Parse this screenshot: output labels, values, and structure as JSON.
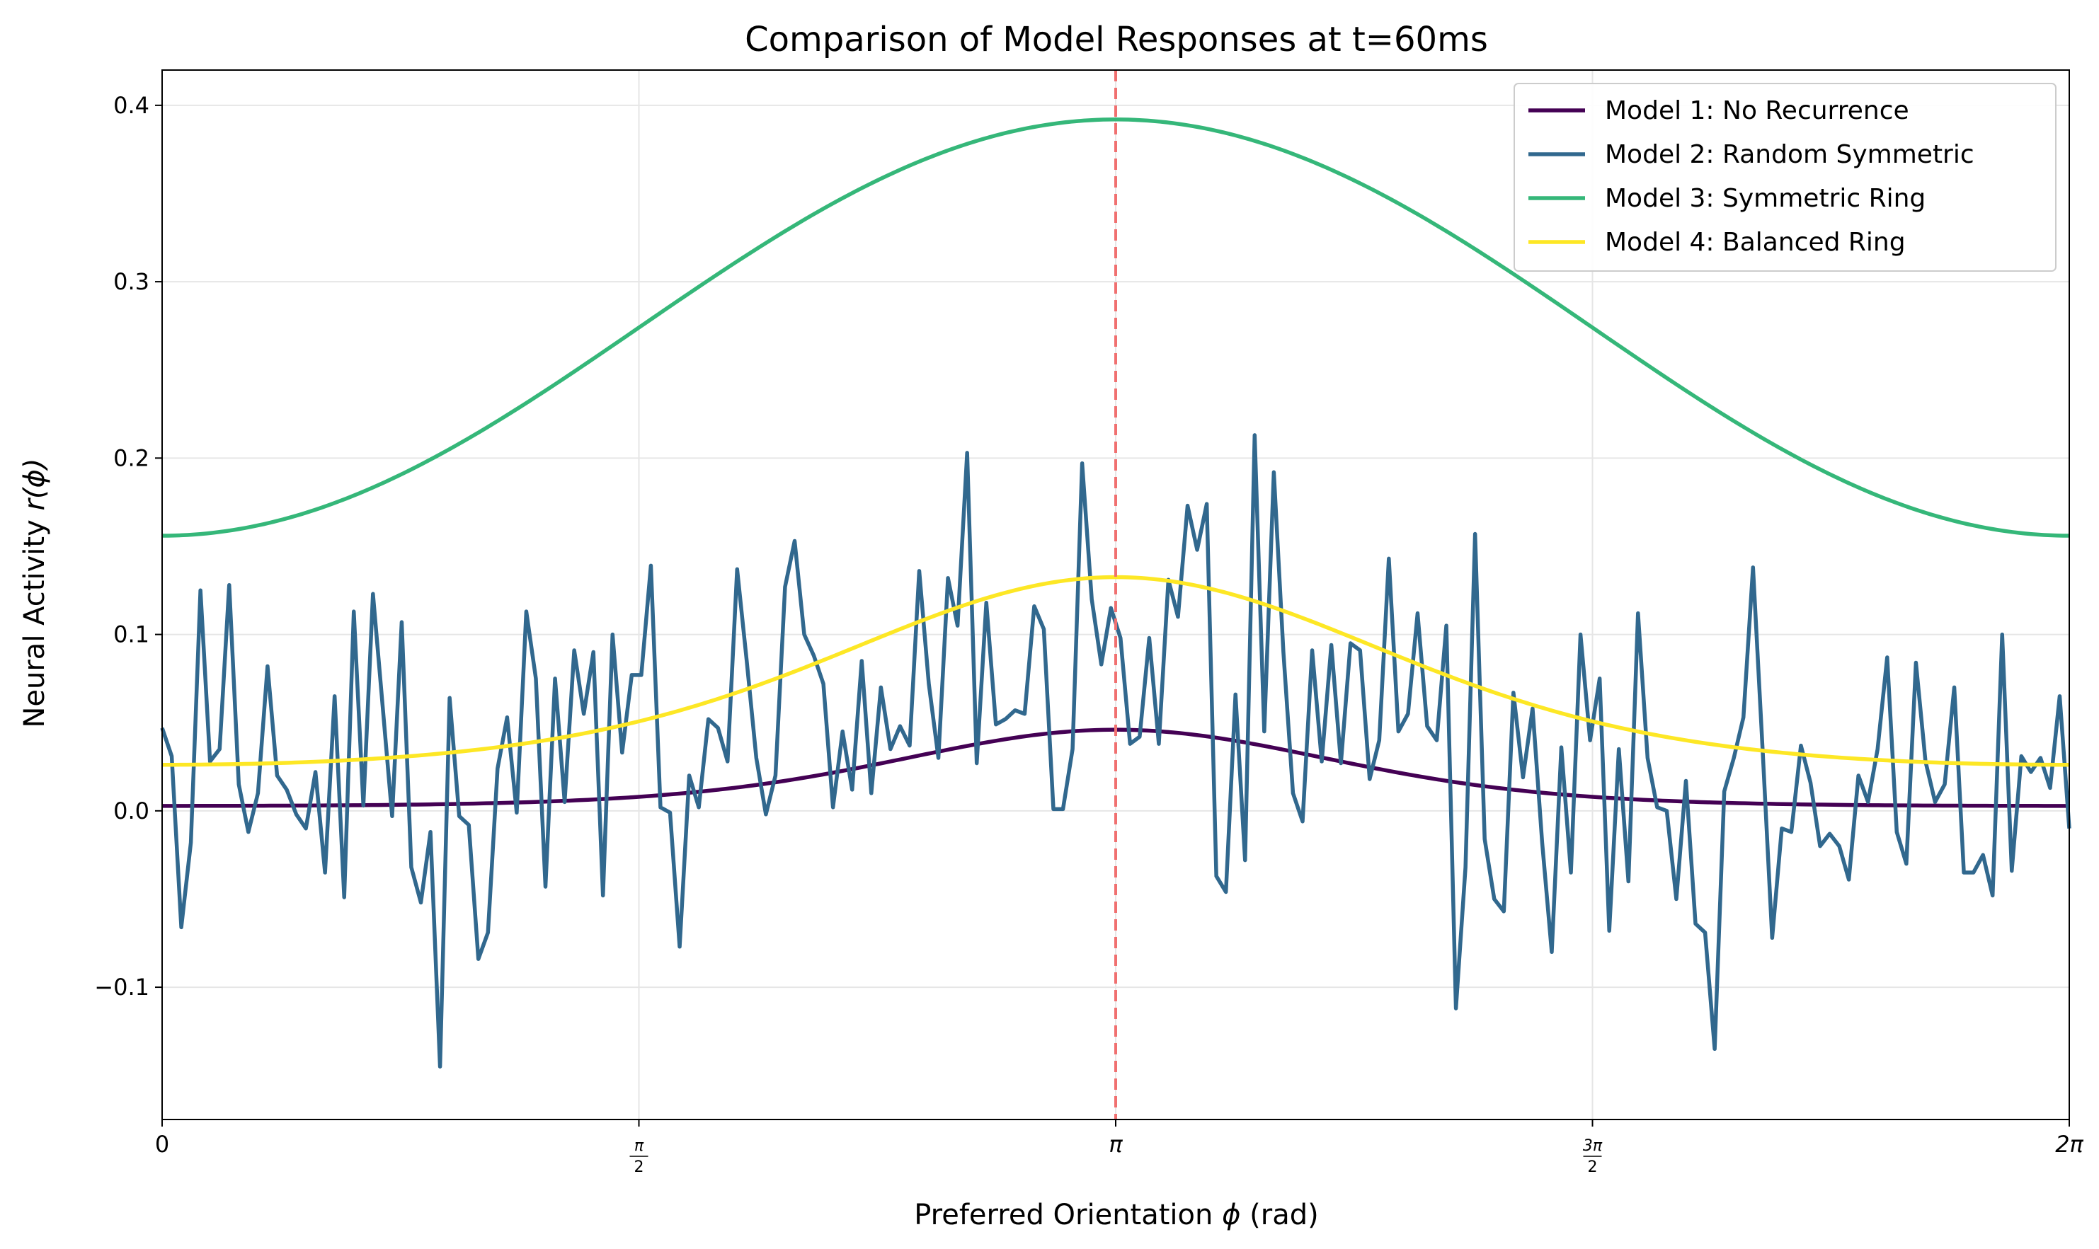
{
  "chart_data": {
    "type": "line",
    "title": "Comparison of Model Responses at t=60ms",
    "xlabel_main": "Preferred Orientation ",
    "xlabel_sym": "ϕ",
    "xlabel_unit": " (rad)",
    "ylabel_main": "Neural Activity ",
    "ylabel_sym": "r(ϕ)",
    "xlim": [
      0,
      6.283185
    ],
    "ylim": [
      -0.175,
      0.42
    ],
    "grid": true,
    "legend_position": "top-right",
    "x_ticks": [
      {
        "value": 0,
        "label": "0"
      },
      {
        "value": 1.570796,
        "label": "",
        "num": "π",
        "den": "2"
      },
      {
        "value": 3.141593,
        "label": "π"
      },
      {
        "value": 4.712389,
        "label": "",
        "num": "3π",
        "den": "2"
      },
      {
        "value": 6.283185,
        "label": "2π"
      }
    ],
    "y_ticks": [
      {
        "value": -0.1,
        "label": "−0.1"
      },
      {
        "value": 0.0,
        "label": "0.0"
      },
      {
        "value": 0.1,
        "label": "0.1"
      },
      {
        "value": 0.2,
        "label": "0.2"
      },
      {
        "value": 0.3,
        "label": "0.3"
      },
      {
        "value": 0.4,
        "label": "0.4"
      }
    ],
    "reference_line": {
      "x": 3.141593,
      "color": "#f07070",
      "style": "dashed"
    },
    "series": [
      {
        "name": "Model 1: No Recurrence",
        "color": "#440154",
        "model": "vonmises",
        "baseline": 0.002,
        "amplitude": 0.044,
        "kappa": 2.0,
        "mu": 3.141593
      },
      {
        "name": "Model 2: Random Symmetric",
        "color": "#31688e",
        "model": "samples",
        "x_start": 0,
        "x_end": 6.283185,
        "values": [
          0.047,
          0.031,
          -0.066,
          -0.018,
          0.125,
          0.028,
          0.035,
          0.128,
          0.015,
          -0.012,
          0.01,
          0.082,
          0.02,
          0.012,
          -0.002,
          -0.01,
          0.022,
          -0.035,
          0.065,
          -0.049,
          0.113,
          0.003,
          0.123,
          0.06,
          -0.003,
          0.107,
          -0.032,
          -0.052,
          -0.012,
          -0.145,
          0.064,
          -0.003,
          -0.008,
          -0.084,
          -0.069,
          0.024,
          0.053,
          -0.001,
          0.113,
          0.075,
          -0.043,
          0.075,
          0.005,
          0.091,
          0.055,
          0.09,
          -0.048,
          0.1,
          0.033,
          0.077,
          0.077,
          0.139,
          0.002,
          -0.001,
          -0.077,
          0.02,
          0.002,
          0.052,
          0.047,
          0.028,
          0.137,
          0.085,
          0.03,
          -0.002,
          0.02,
          0.127,
          0.153,
          0.1,
          0.088,
          0.072,
          0.002,
          0.045,
          0.012,
          0.085,
          0.01,
          0.07,
          0.035,
          0.048,
          0.037,
          0.136,
          0.072,
          0.03,
          0.132,
          0.105,
          0.203,
          0.027,
          0.118,
          0.049,
          0.052,
          0.057,
          0.055,
          0.116,
          0.103,
          0.001,
          0.001,
          0.035,
          0.197,
          0.12,
          0.083,
          0.115,
          0.098,
          0.038,
          0.042,
          0.098,
          0.038,
          0.131,
          0.11,
          0.173,
          0.148,
          0.174,
          -0.037,
          -0.046,
          0.066,
          -0.028,
          0.213,
          0.045,
          0.192,
          0.09,
          0.01,
          -0.006,
          0.091,
          0.028,
          0.094,
          0.027,
          0.095,
          0.091,
          0.018,
          0.04,
          0.143,
          0.045,
          0.055,
          0.112,
          0.048,
          0.04,
          0.105,
          -0.112,
          -0.032,
          0.157,
          -0.016,
          -0.05,
          -0.057,
          0.067,
          0.019,
          0.058,
          -0.018,
          -0.08,
          0.036,
          -0.035,
          0.1,
          0.04,
          0.075,
          -0.068,
          0.035,
          -0.04,
          0.112,
          0.03,
          0.002,
          0.0,
          -0.05,
          0.017,
          -0.064,
          -0.069,
          -0.135,
          0.011,
          0.03,
          0.053,
          0.138,
          0.035,
          -0.072,
          -0.01,
          -0.012,
          0.037,
          0.016,
          -0.02,
          -0.013,
          -0.02,
          -0.039,
          0.02,
          0.005,
          0.035,
          0.087,
          -0.012,
          -0.03,
          0.084,
          0.028,
          0.005,
          0.015,
          0.07,
          -0.035,
          -0.035,
          -0.025,
          -0.048,
          0.1,
          -0.034,
          0.031,
          0.022,
          0.03,
          0.013,
          0.065,
          -0.01
        ]
      },
      {
        "name": "Model 3: Symmetric Ring",
        "color": "#35b779",
        "model": "cosine",
        "mean": 0.274,
        "amplitude": 0.118,
        "mu": 3.141593
      },
      {
        "name": "Model 4: Balanced Ring",
        "color": "#fde725",
        "model": "vonmises",
        "baseline": 0.0155,
        "amplitude": 0.117,
        "kappa": 1.2,
        "mu": 3.141593
      }
    ]
  }
}
